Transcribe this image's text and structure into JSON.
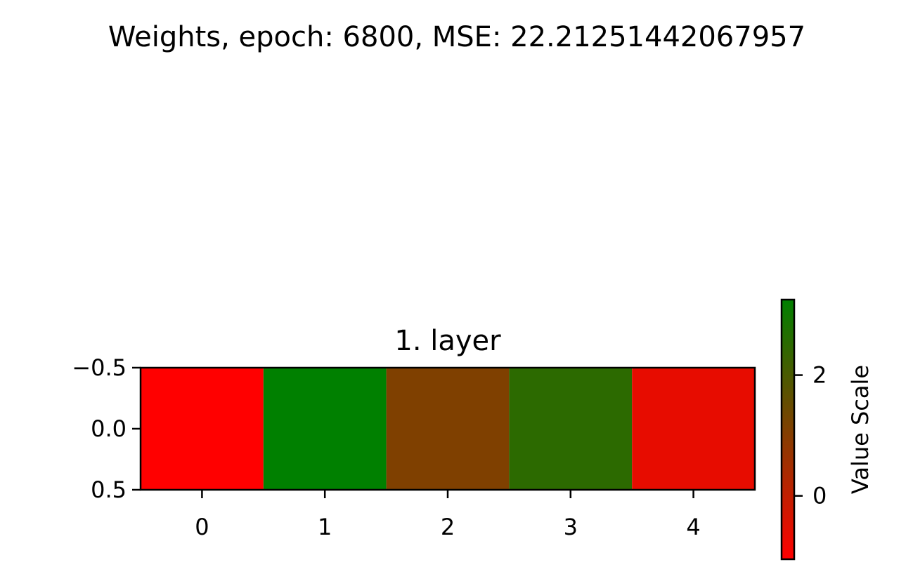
{
  "figure": {
    "suptitle": "Weights, epoch: 6800, MSE: 22.21251442067957"
  },
  "chart_data": {
    "type": "heatmap",
    "title": "1. layer",
    "xlabel": "",
    "ylabel": "",
    "rows": 1,
    "columns": 5,
    "x_ticks": [
      0,
      1,
      2,
      3,
      4
    ],
    "x_tick_labels": [
      "0",
      "1",
      "2",
      "3",
      "4"
    ],
    "y_ticks": [
      -0.5,
      0.0,
      0.5
    ],
    "y_tick_labels": [
      "−0.5",
      "0.0",
      "0.5"
    ],
    "xlim": [
      -0.5,
      4.5
    ],
    "ylim": [
      0.5,
      -0.5
    ],
    "values": [
      [
        -1.05,
        3.25,
        1.1,
        2.5,
        -0.65
      ]
    ],
    "colorbar": {
      "label": "Value Scale",
      "range": [
        -1.05,
        3.25
      ],
      "ticks": [
        0,
        2
      ],
      "tick_labels": [
        "0",
        "2"
      ],
      "colormap": {
        "low": "#ff0000",
        "high": "#008000"
      }
    },
    "grid": false
  }
}
